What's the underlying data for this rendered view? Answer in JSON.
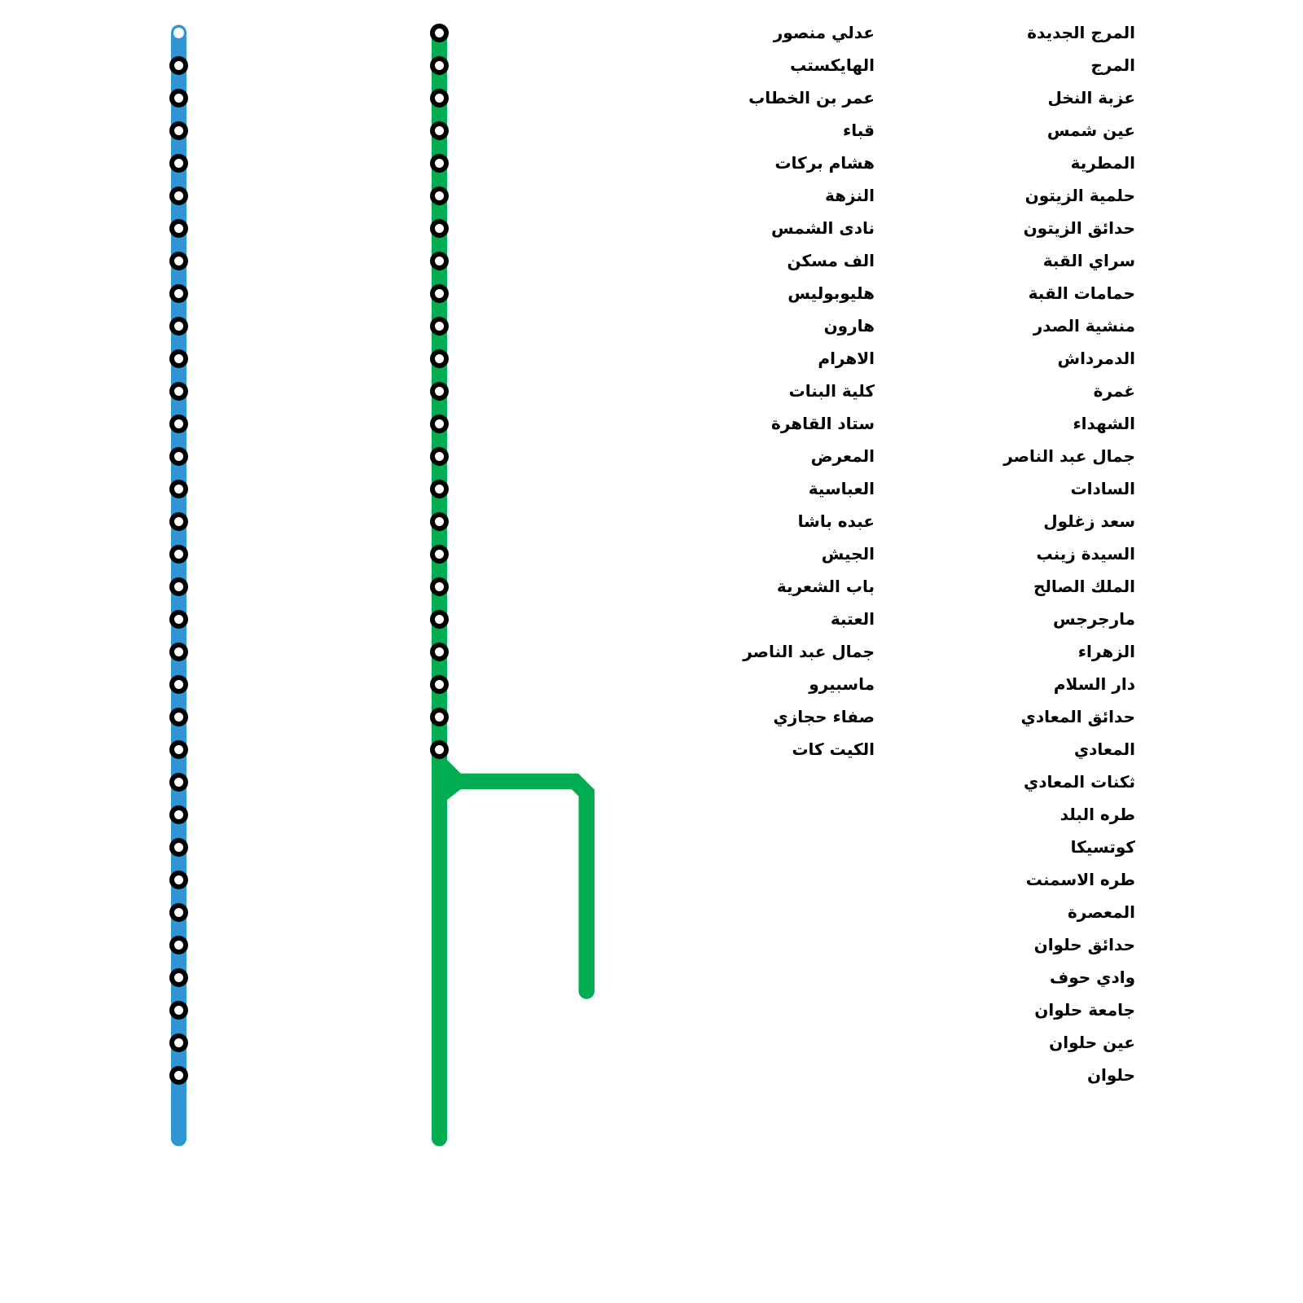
{
  "map": {
    "background_color": "#FFFFFF",
    "station_marker": {
      "ring_color": "#000000",
      "fill_color": "#FFFFFF"
    },
    "label_text_color": "#000000",
    "blue_line": {
      "name": "blue-line",
      "color": "#2D96D3",
      "first_station_marker": "small-white-dot",
      "stations": [
        "المرج الجديدة",
        "المرج",
        "عزبة النخل",
        "عين شمس",
        "المطرية",
        "حلمية الزيتون",
        "حدائق الزيتون",
        "سراي القبة",
        "حمامات القبة",
        "منشية الصدر",
        "الدمرداش",
        "غمرة",
        "الشهداء",
        "جمال عبد الناصر",
        "السادات",
        "سعد زغلول",
        "السيدة زينب",
        "الملك الصالح",
        "مارجرجس",
        "الزهراء",
        "دار السلام",
        "حدائق المعادي",
        "المعادي",
        "ثكنات المعادي",
        "طره البلد",
        "كوتسيكا",
        "طره الاسمنت",
        "المعصرة",
        "حدائق حلوان",
        "وادي حوف",
        "جامعة حلوان",
        "عين حلوان",
        "حلوان"
      ]
    },
    "green_line": {
      "name": "green-line",
      "color": "#00AD50",
      "branch": "unlabeled-branch-after-last-station",
      "stations": [
        "عدلي منصور",
        "الهايكستب",
        "عمر بن الخطاب",
        "قباء",
        "هشام بركات",
        "النزهة",
        "نادى الشمس",
        "الف مسكن",
        "هليوبوليس",
        "هارون",
        "الاهرام",
        "كلية البنات",
        "ستاد القاهرة",
        "المعرض",
        "العباسية",
        "عبده باشا",
        "الجيش",
        "باب الشعرية",
        "العتبة",
        "جمال عبد الناصر",
        "ماسبيرو",
        "صفاء حجازي",
        "الكيت كات"
      ]
    }
  }
}
